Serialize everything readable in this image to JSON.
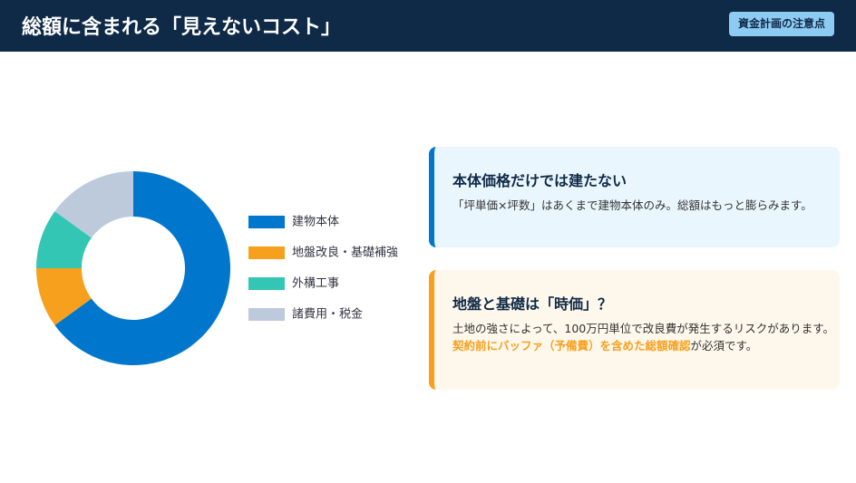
{
  "header": {
    "title": "総額に含まれる「見えないコスト」",
    "badge": "資金計画の注意点"
  },
  "chart_data": {
    "type": "donut",
    "categories": [
      "建物本体",
      "地盤改良・基礎補強",
      "外構工事",
      "諸費用・税金"
    ],
    "values": [
      65,
      10,
      10,
      15
    ],
    "colors": [
      "#0077cc",
      "#f7a01e",
      "#33c6b5",
      "#bccadc"
    ],
    "legend": "right"
  },
  "cards": [
    {
      "title": "本体価格だけでは建たない",
      "body": "「坪単価×坪数」はあくまで建物本体のみ。総額はもっと膨らみます。",
      "color": "#0077cc"
    },
    {
      "title": "地盤と基礎は「時価」？",
      "body": "土地の強さによって、100万円単位で改良費が発生するリスクがあります。",
      "highlight": "契約前にバッファ（予備費）を含めた総額確認",
      "body_end": "が必須です。",
      "color": "#f7a01e"
    }
  ]
}
